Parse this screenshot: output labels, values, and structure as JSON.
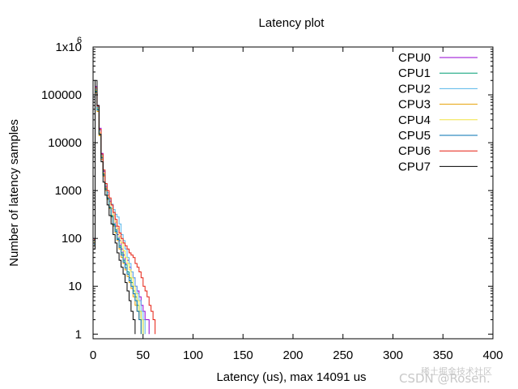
{
  "chart_data": {
    "type": "line",
    "title": "Latency plot",
    "xlabel": "Latency (us), max 14091 us",
    "ylabel": "Number of latency samples",
    "xlim": [
      0,
      400
    ],
    "ylim": [
      0.8,
      1000000
    ],
    "yscale": "log",
    "x_ticks": [
      0,
      50,
      100,
      150,
      200,
      250,
      300,
      350,
      400
    ],
    "x_tick_labels": [
      "0",
      "50",
      "100",
      "150",
      "200",
      "250",
      "300",
      "350",
      "400"
    ],
    "y_ticks": [
      1,
      10,
      100,
      1000,
      10000,
      100000,
      1000000
    ],
    "y_tick_labels": [
      "1",
      "10",
      "100",
      "1000",
      "10000",
      "100000",
      "1x10"
    ],
    "y_top_exponent": "6",
    "grid": false,
    "legend_position": "top-right",
    "series": [
      {
        "name": "CPU0",
        "color": "#9400d3",
        "points": [
          [
            1,
            100
          ],
          [
            2,
            150000
          ],
          [
            4,
            60000
          ],
          [
            6,
            20000
          ],
          [
            8,
            6000
          ],
          [
            10,
            2500
          ],
          [
            12,
            1200
          ],
          [
            14,
            800
          ],
          [
            16,
            600
          ],
          [
            18,
            500
          ],
          [
            20,
            300
          ],
          [
            22,
            180
          ],
          [
            24,
            120
          ],
          [
            26,
            90
          ],
          [
            28,
            60
          ],
          [
            30,
            45
          ],
          [
            32,
            30
          ],
          [
            34,
            35
          ],
          [
            36,
            25
          ],
          [
            38,
            20
          ],
          [
            40,
            15
          ],
          [
            42,
            10
          ],
          [
            44,
            8
          ],
          [
            46,
            6
          ],
          [
            48,
            4
          ],
          [
            50,
            3
          ],
          [
            52,
            2
          ],
          [
            54,
            2
          ],
          [
            56,
            1
          ]
        ]
      },
      {
        "name": "CPU1",
        "color": "#009e73",
        "points": [
          [
            1,
            80
          ],
          [
            2,
            120000
          ],
          [
            4,
            50000
          ],
          [
            6,
            15000
          ],
          [
            8,
            5000
          ],
          [
            10,
            2200
          ],
          [
            12,
            1100
          ],
          [
            14,
            700
          ],
          [
            16,
            450
          ],
          [
            18,
            300
          ],
          [
            20,
            200
          ],
          [
            22,
            150
          ],
          [
            24,
            100
          ],
          [
            26,
            70
          ],
          [
            28,
            50
          ],
          [
            30,
            35
          ],
          [
            32,
            28
          ],
          [
            34,
            20
          ],
          [
            36,
            15
          ],
          [
            38,
            12
          ],
          [
            40,
            8
          ],
          [
            42,
            6
          ],
          [
            44,
            4
          ],
          [
            46,
            3
          ],
          [
            48,
            2
          ],
          [
            50,
            1
          ]
        ]
      },
      {
        "name": "CPU2",
        "color": "#56b4e9",
        "points": [
          [
            1,
            90
          ],
          [
            2,
            130000
          ],
          [
            4,
            55000
          ],
          [
            6,
            18000
          ],
          [
            8,
            5500
          ],
          [
            10,
            2600
          ],
          [
            12,
            1300
          ],
          [
            14,
            900
          ],
          [
            16,
            650
          ],
          [
            18,
            520
          ],
          [
            20,
            400
          ],
          [
            22,
            320
          ],
          [
            24,
            280
          ],
          [
            26,
            200
          ],
          [
            28,
            120
          ],
          [
            30,
            90
          ],
          [
            32,
            60
          ],
          [
            34,
            40
          ],
          [
            36,
            30
          ],
          [
            38,
            20
          ],
          [
            40,
            15
          ],
          [
            42,
            10
          ],
          [
            44,
            7
          ],
          [
            46,
            5
          ],
          [
            48,
            3
          ],
          [
            50,
            2
          ],
          [
            52,
            1
          ]
        ]
      },
      {
        "name": "CPU3",
        "color": "#e69f00",
        "points": [
          [
            1,
            70
          ],
          [
            2,
            110000
          ],
          [
            4,
            45000
          ],
          [
            6,
            14000
          ],
          [
            8,
            4500
          ],
          [
            10,
            2000
          ],
          [
            12,
            1000
          ],
          [
            14,
            650
          ],
          [
            16,
            420
          ],
          [
            18,
            280
          ],
          [
            20,
            180
          ],
          [
            22,
            130
          ],
          [
            24,
            90
          ],
          [
            26,
            60
          ],
          [
            28,
            40
          ],
          [
            30,
            30
          ],
          [
            32,
            22
          ],
          [
            34,
            16
          ],
          [
            36,
            12
          ],
          [
            38,
            9
          ],
          [
            40,
            6
          ],
          [
            42,
            4
          ],
          [
            44,
            3
          ],
          [
            46,
            2
          ],
          [
            48,
            1
          ]
        ]
      },
      {
        "name": "CPU4",
        "color": "#f0e442",
        "points": [
          [
            1,
            85
          ],
          [
            2,
            125000
          ],
          [
            4,
            52000
          ],
          [
            6,
            16000
          ],
          [
            8,
            5200
          ],
          [
            10,
            2300
          ],
          [
            12,
            1150
          ],
          [
            14,
            780
          ],
          [
            16,
            560
          ],
          [
            18,
            420
          ],
          [
            20,
            300
          ],
          [
            22,
            220
          ],
          [
            24,
            160
          ],
          [
            26,
            110
          ],
          [
            28,
            80
          ],
          [
            30,
            55
          ],
          [
            32,
            40
          ],
          [
            34,
            30
          ],
          [
            36,
            22
          ],
          [
            38,
            15
          ],
          [
            40,
            10
          ],
          [
            42,
            7
          ],
          [
            44,
            5
          ],
          [
            46,
            3
          ],
          [
            48,
            2
          ],
          [
            50,
            1
          ]
        ]
      },
      {
        "name": "CPU5",
        "color": "#0072b2",
        "points": [
          [
            1,
            75
          ],
          [
            2,
            115000
          ],
          [
            4,
            48000
          ],
          [
            6,
            15000
          ],
          [
            8,
            4800
          ],
          [
            10,
            2100
          ],
          [
            12,
            1050
          ],
          [
            14,
            680
          ],
          [
            16,
            440
          ],
          [
            18,
            290
          ],
          [
            20,
            190
          ],
          [
            22,
            140
          ],
          [
            24,
            95
          ],
          [
            26,
            65
          ],
          [
            28,
            45
          ],
          [
            30,
            32
          ],
          [
            32,
            24
          ],
          [
            34,
            18
          ],
          [
            36,
            13
          ],
          [
            38,
            10
          ],
          [
            40,
            7
          ],
          [
            42,
            5
          ],
          [
            44,
            3
          ],
          [
            46,
            2
          ],
          [
            48,
            1
          ]
        ]
      },
      {
        "name": "CPU6",
        "color": "#e51e10",
        "points": [
          [
            1,
            95
          ],
          [
            2,
            140000
          ],
          [
            4,
            58000
          ],
          [
            6,
            19000
          ],
          [
            8,
            5800
          ],
          [
            10,
            2700
          ],
          [
            12,
            1400
          ],
          [
            14,
            1000
          ],
          [
            16,
            700
          ],
          [
            18,
            500
          ],
          [
            20,
            350
          ],
          [
            22,
            250
          ],
          [
            24,
            180
          ],
          [
            26,
            130
          ],
          [
            28,
            100
          ],
          [
            30,
            80
          ],
          [
            32,
            70
          ],
          [
            34,
            60
          ],
          [
            36,
            50
          ],
          [
            38,
            45
          ],
          [
            40,
            40
          ],
          [
            42,
            30
          ],
          [
            44,
            25
          ],
          [
            46,
            20
          ],
          [
            48,
            15
          ],
          [
            50,
            10
          ],
          [
            52,
            8
          ],
          [
            54,
            6
          ],
          [
            56,
            4
          ],
          [
            58,
            3
          ],
          [
            60,
            2
          ],
          [
            62,
            1
          ]
        ]
      },
      {
        "name": "CPU7",
        "color": "#000000",
        "points": [
          [
            1,
            60
          ],
          [
            2,
            200000
          ],
          [
            4,
            60000
          ],
          [
            6,
            15000
          ],
          [
            8,
            4000
          ],
          [
            10,
            1500
          ],
          [
            12,
            800
          ],
          [
            14,
            500
          ],
          [
            16,
            300
          ],
          [
            18,
            200
          ],
          [
            20,
            120
          ],
          [
            22,
            80
          ],
          [
            24,
            50
          ],
          [
            26,
            35
          ],
          [
            28,
            25
          ],
          [
            30,
            18
          ],
          [
            32,
            12
          ],
          [
            34,
            8
          ],
          [
            36,
            5
          ],
          [
            38,
            3
          ],
          [
            40,
            2
          ],
          [
            42,
            1
          ]
        ]
      }
    ]
  },
  "watermark": "CSDN @Rosen.",
  "watermark_cn": "稀土掘金技术社区"
}
